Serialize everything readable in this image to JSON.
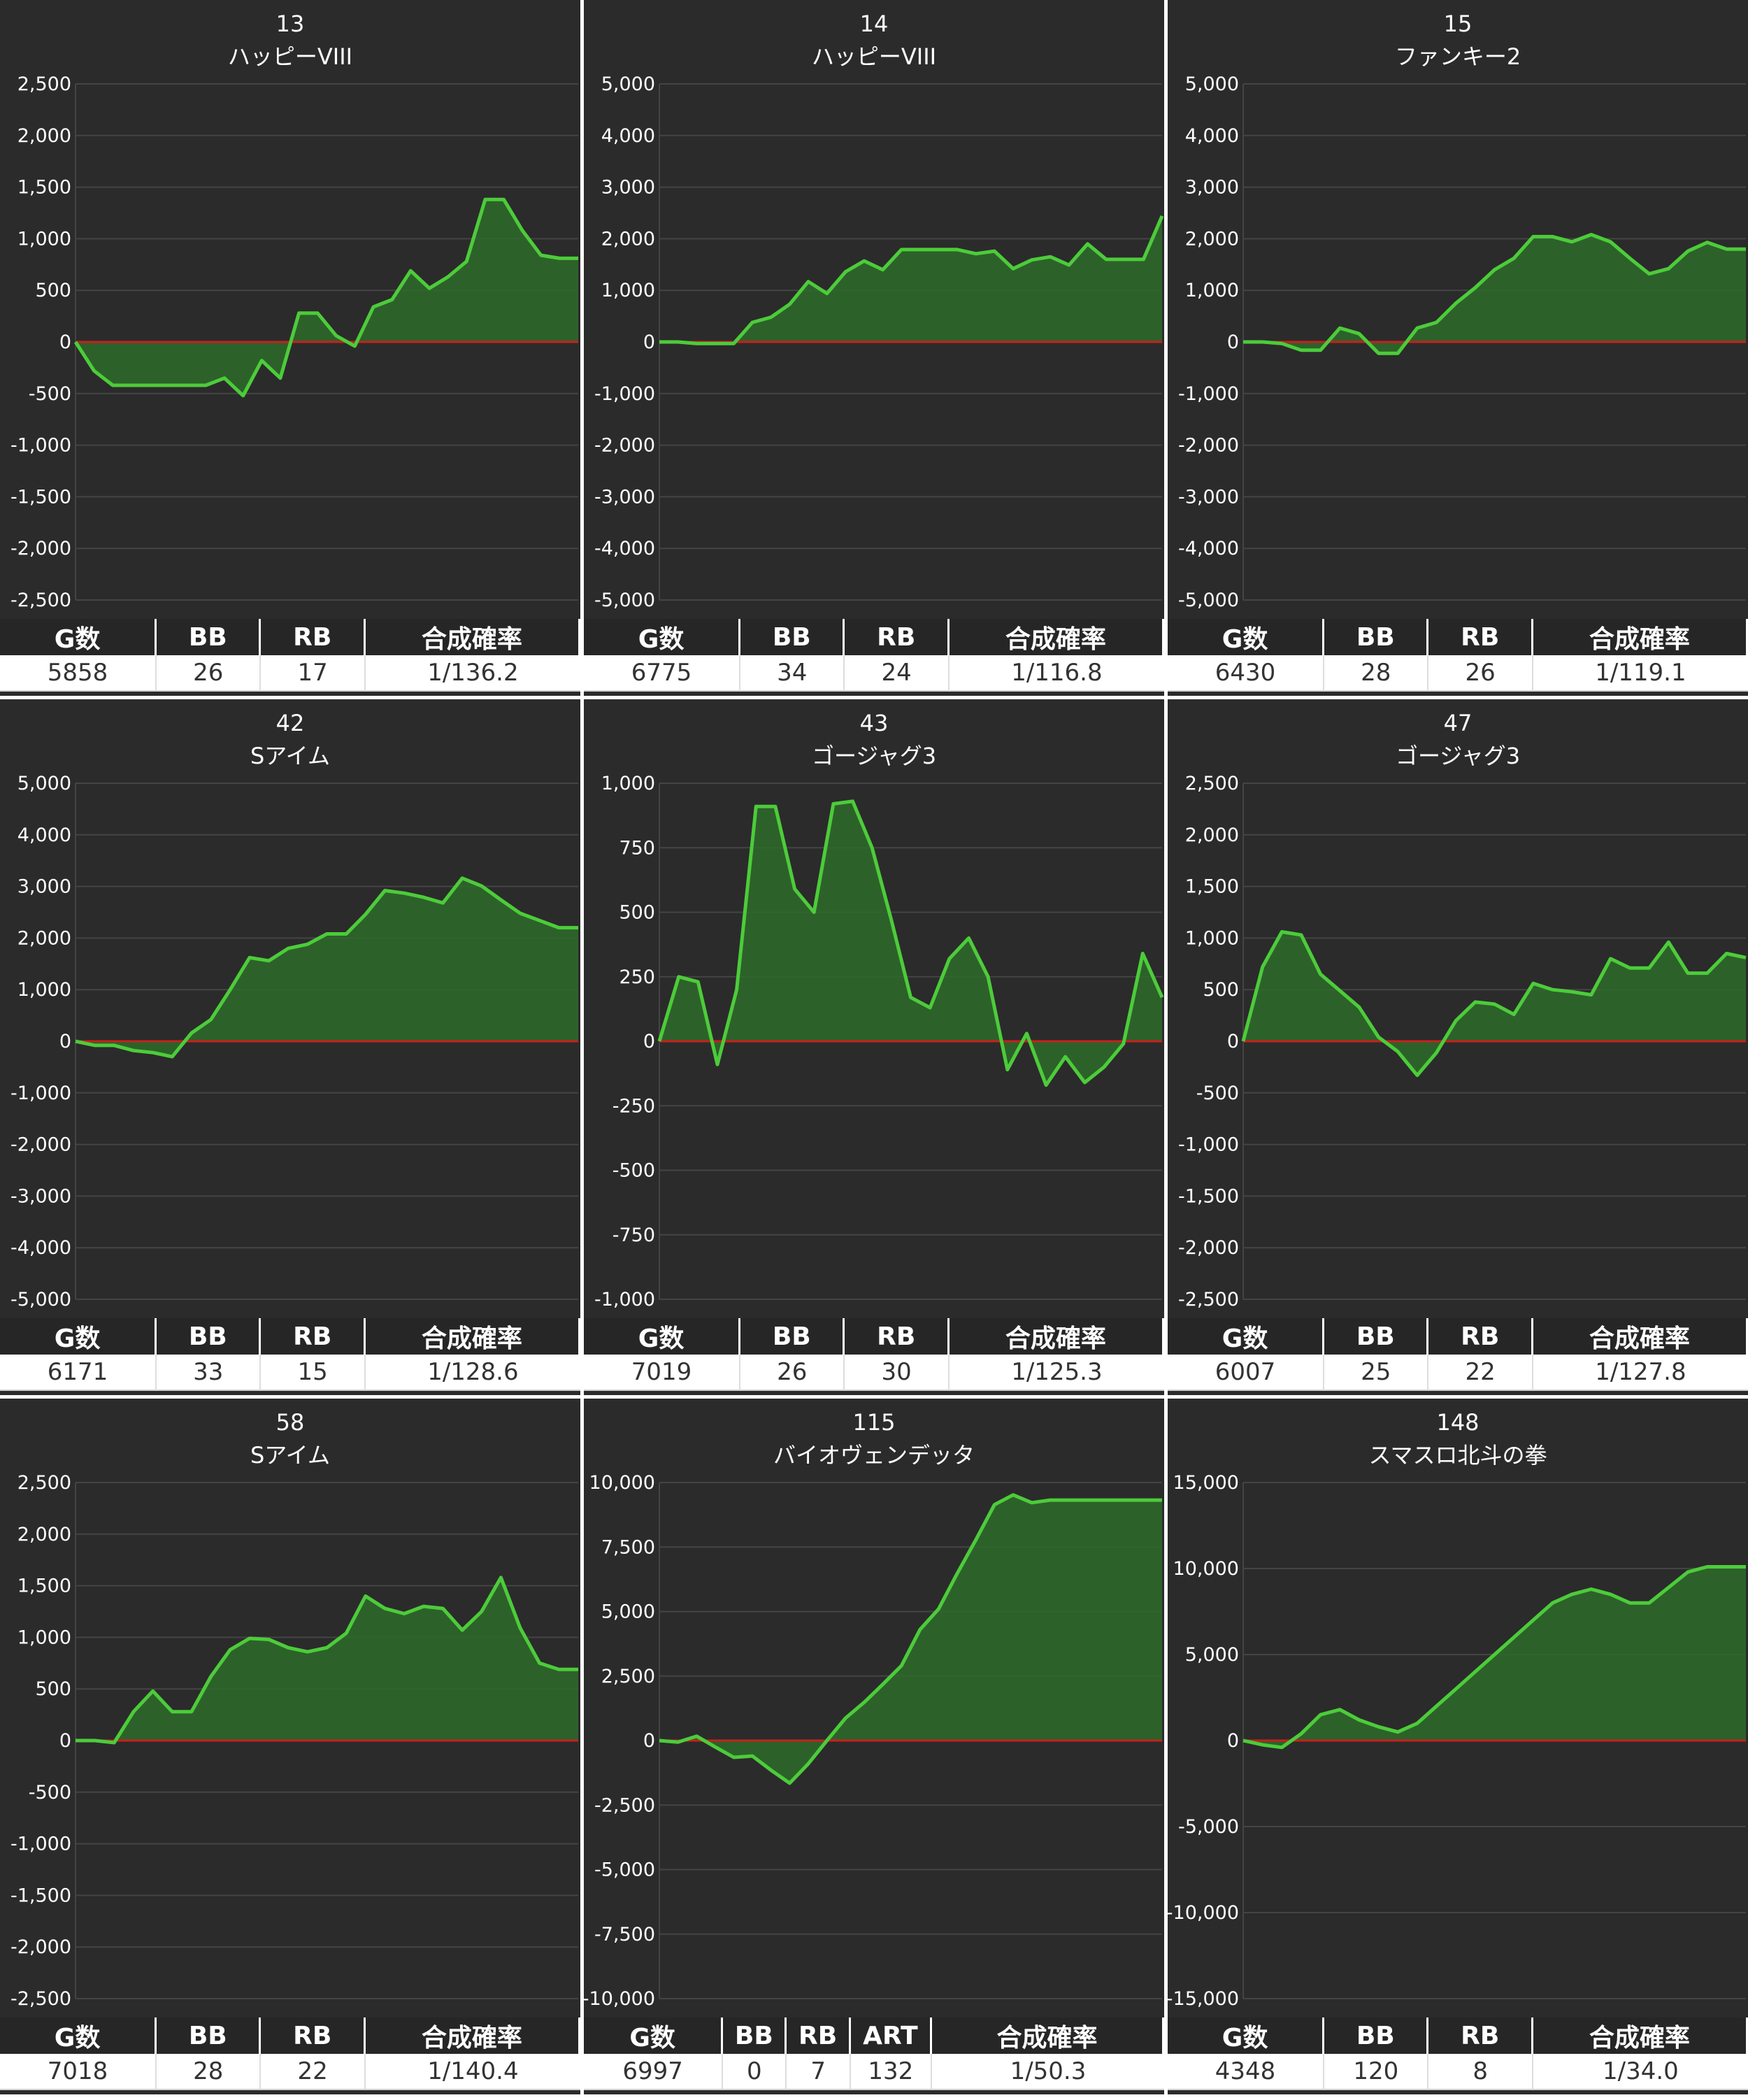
{
  "colors": {
    "panel_bg": "#2b2b2b",
    "grid_line": "#444444",
    "zero_line": "#c8201c",
    "line": "#4ccc3a",
    "fill": "#2e6b2a"
  },
  "chart_data": [
    {
      "type": "area",
      "number": "13",
      "name": "ハッピーVIII",
      "ylim": [
        -2500,
        2500
      ],
      "yticks": [
        2500,
        2000,
        1500,
        1000,
        500,
        0,
        -500,
        -1000,
        -1500,
        -2000,
        -2500
      ],
      "ytick_labels": [
        "2,500",
        "2,000",
        "1,500",
        "1,000",
        "500",
        "0",
        "-500",
        "-1,000",
        "-1,500",
        "-2,000",
        "-2,500"
      ],
      "values": [
        0,
        -280,
        -420,
        -420,
        -420,
        -420,
        -420,
        -420,
        -350,
        -520,
        -180,
        -350,
        280,
        280,
        60,
        -40,
        340,
        410,
        690,
        520,
        630,
        780,
        1380,
        1380,
        1080,
        840,
        810,
        810
      ],
      "stats": {
        "headers": [
          "G数",
          "BB",
          "RB",
          "合成確率"
        ],
        "values": [
          "5858",
          "26",
          "17",
          "1/136.2"
        ]
      }
    },
    {
      "type": "area",
      "number": "14",
      "name": "ハッピーVIII",
      "ylim": [
        -5000,
        5000
      ],
      "yticks": [
        5000,
        4000,
        3000,
        2000,
        1000,
        0,
        -1000,
        -2000,
        -3000,
        -4000,
        -5000
      ],
      "ytick_labels": [
        "5,000",
        "4,000",
        "3,000",
        "2,000",
        "1,000",
        "0",
        "-1,000",
        "-2,000",
        "-3,000",
        "-4,000",
        "-5,000"
      ],
      "values": [
        0,
        0,
        -30,
        -30,
        -30,
        380,
        480,
        730,
        1170,
        940,
        1360,
        1570,
        1400,
        1790,
        1790,
        1790,
        1790,
        1710,
        1760,
        1420,
        1590,
        1650,
        1490,
        1900,
        1600,
        1600,
        1600,
        2440
      ],
      "stats": {
        "headers": [
          "G数",
          "BB",
          "RB",
          "合成確率"
        ],
        "values": [
          "6775",
          "34",
          "24",
          "1/116.8"
        ]
      }
    },
    {
      "type": "area",
      "number": "15",
      "name": "ファンキー2",
      "ylim": [
        -5000,
        5000
      ],
      "yticks": [
        5000,
        4000,
        3000,
        2000,
        1000,
        0,
        -1000,
        -2000,
        -3000,
        -4000,
        -5000
      ],
      "ytick_labels": [
        "5,000",
        "4,000",
        "3,000",
        "2,000",
        "1,000",
        "0",
        "-1,000",
        "-2,000",
        "-3,000",
        "-4,000",
        "-5,000"
      ],
      "values": [
        0,
        0,
        -30,
        -160,
        -160,
        270,
        160,
        -220,
        -220,
        270,
        380,
        750,
        1050,
        1400,
        1620,
        2040,
        2040,
        1940,
        2080,
        1940,
        1620,
        1320,
        1420,
        1760,
        1930,
        1800,
        1800
      ],
      "stats": {
        "headers": [
          "G数",
          "BB",
          "RB",
          "合成確率"
        ],
        "values": [
          "6430",
          "28",
          "26",
          "1/119.1"
        ]
      }
    },
    {
      "type": "area",
      "number": "42",
      "name": "Sアイム",
      "ylim": [
        -5000,
        5000
      ],
      "yticks": [
        5000,
        4000,
        3000,
        2000,
        1000,
        0,
        -1000,
        -2000,
        -3000,
        -4000,
        -5000
      ],
      "ytick_labels": [
        "5,000",
        "4,000",
        "3,000",
        "2,000",
        "1,000",
        "0",
        "-1,000",
        "-2,000",
        "-3,000",
        "-4,000",
        "-5,000"
      ],
      "values": [
        0,
        -80,
        -80,
        -180,
        -220,
        -300,
        160,
        420,
        1000,
        1620,
        1560,
        1800,
        1880,
        2080,
        2080,
        2460,
        2920,
        2870,
        2790,
        2680,
        3160,
        3010,
        2740,
        2480,
        2340,
        2200,
        2200
      ],
      "stats": {
        "headers": [
          "G数",
          "BB",
          "RB",
          "合成確率"
        ],
        "values": [
          "6171",
          "33",
          "15",
          "1/128.6"
        ]
      }
    },
    {
      "type": "area",
      "number": "43",
      "name": "ゴージャグ3",
      "ylim": [
        -1000,
        1000
      ],
      "yticks": [
        1000,
        750,
        500,
        250,
        0,
        -250,
        -500,
        -750,
        -1000
      ],
      "ytick_labels": [
        "1,000",
        "750",
        "500",
        "250",
        "0",
        "-250",
        "-500",
        "-750",
        "-1,000"
      ],
      "values": [
        0,
        250,
        230,
        -90,
        200,
        910,
        910,
        590,
        500,
        920,
        930,
        750,
        470,
        170,
        130,
        320,
        400,
        250,
        -110,
        30,
        -170,
        -60,
        -160,
        -100,
        -10,
        340,
        170
      ],
      "stats": {
        "headers": [
          "G数",
          "BB",
          "RB",
          "合成確率"
        ],
        "values": [
          "7019",
          "26",
          "30",
          "1/125.3"
        ]
      }
    },
    {
      "type": "area",
      "number": "47",
      "name": "ゴージャグ3",
      "ylim": [
        -2500,
        2500
      ],
      "yticks": [
        2500,
        2000,
        1500,
        1000,
        500,
        0,
        -500,
        -1000,
        -1500,
        -2000,
        -2500
      ],
      "ytick_labels": [
        "2,500",
        "2,000",
        "1,500",
        "1,000",
        "500",
        "0",
        "-500",
        "-1,000",
        "-1,500",
        "-2,000",
        "-2,500"
      ],
      "values": [
        0,
        720,
        1060,
        1030,
        650,
        490,
        330,
        40,
        -100,
        -330,
        -110,
        200,
        380,
        360,
        260,
        560,
        500,
        480,
        450,
        800,
        710,
        710,
        960,
        660,
        660,
        850,
        810
      ],
      "stats": {
        "headers": [
          "G数",
          "BB",
          "RB",
          "合成確率"
        ],
        "values": [
          "6007",
          "25",
          "22",
          "1/127.8"
        ]
      }
    },
    {
      "type": "area",
      "number": "58",
      "name": "Sアイム",
      "ylim": [
        -2500,
        2500
      ],
      "yticks": [
        2500,
        2000,
        1500,
        1000,
        500,
        0,
        -500,
        -1000,
        -1500,
        -2000,
        -2500
      ],
      "ytick_labels": [
        "2,500",
        "2,000",
        "1,500",
        "1,000",
        "500",
        "0",
        "-500",
        "-1,000",
        "-1,500",
        "-2,000",
        "-2,500"
      ],
      "values": [
        0,
        0,
        -20,
        280,
        480,
        280,
        280,
        620,
        880,
        990,
        980,
        900,
        860,
        900,
        1040,
        1400,
        1280,
        1230,
        1300,
        1280,
        1070,
        1250,
        1580,
        1090,
        750,
        690,
        690
      ],
      "stats": {
        "headers": [
          "G数",
          "BB",
          "RB",
          "合成確率"
        ],
        "values": [
          "7018",
          "28",
          "22",
          "1/140.4"
        ]
      }
    },
    {
      "type": "area",
      "number": "115",
      "name": "バイオヴェンデッタ",
      "ylim": [
        -10000,
        10000
      ],
      "yticks": [
        10000,
        7500,
        5000,
        2500,
        0,
        -2500,
        -5000,
        -7500,
        -10000
      ],
      "ytick_labels": [
        "10,000",
        "7,500",
        "5,000",
        "2,500",
        "0",
        "-2,500",
        "-5,000",
        "-7,500",
        "-10,000"
      ],
      "values": [
        0,
        -60,
        170,
        -250,
        -650,
        -600,
        -1150,
        -1650,
        -900,
        0,
        870,
        1480,
        2180,
        2900,
        4300,
        5100,
        6480,
        7780,
        9140,
        9520,
        9220,
        9320,
        9320,
        9320,
        9320,
        9320,
        9320,
        9320
      ],
      "stats": {
        "headers": [
          "G数",
          "BB",
          "RB",
          "ART",
          "合成確率"
        ],
        "values": [
          "6997",
          "0",
          "7",
          "132",
          "1/50.3"
        ]
      }
    },
    {
      "type": "area",
      "number": "148",
      "name": "スマスロ北斗の拳",
      "ylim": [
        -15000,
        15000
      ],
      "yticks": [
        15000,
        10000,
        5000,
        0,
        -5000,
        -10000,
        -15000
      ],
      "ytick_labels": [
        "15,000",
        "10,000",
        "5,000",
        "0",
        "-5,000",
        "-10,000",
        "-15,000"
      ],
      "values": [
        0,
        -250,
        -400,
        400,
        1500,
        1800,
        1200,
        800,
        500,
        1000,
        2000,
        3000,
        4000,
        5000,
        6000,
        7000,
        8000,
        8500,
        8800,
        8500,
        8000,
        8000,
        8900,
        9800,
        10100,
        10100,
        10100
      ],
      "stats": {
        "headers": [
          "G数",
          "BB",
          "RB",
          "合成確率"
        ],
        "values": [
          "4348",
          "120",
          "8",
          "1/34.0"
        ]
      }
    }
  ]
}
